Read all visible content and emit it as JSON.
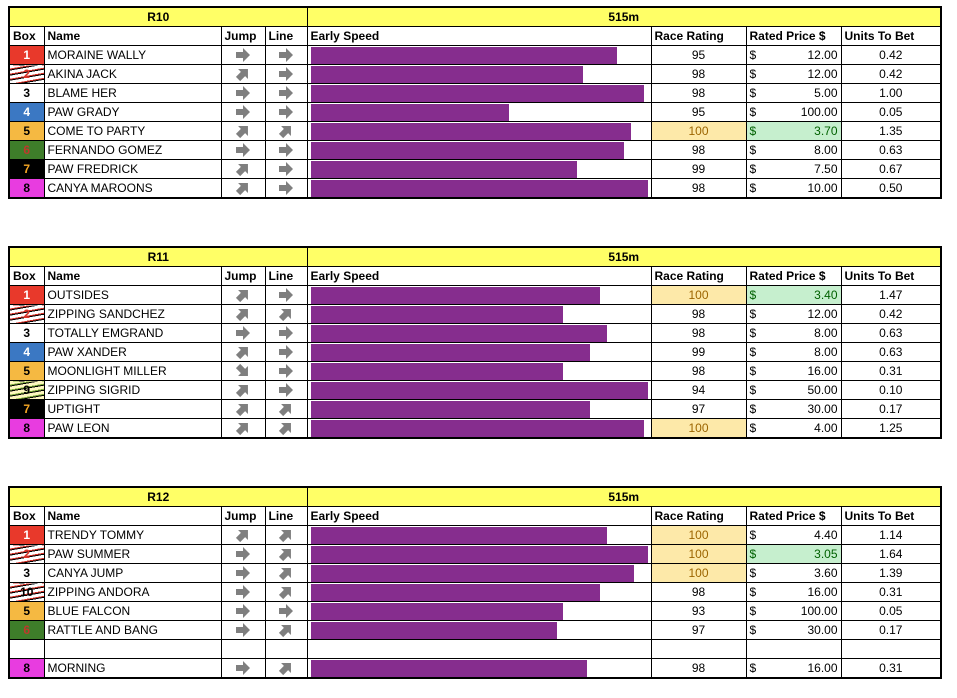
{
  "columns": [
    "Box",
    "Name",
    "Jump",
    "Line",
    "Early Speed",
    "Race Rating",
    "Rated Price $",
    "Units To Bet"
  ],
  "currency": "$",
  "early_speed_lim": [
    0,
    100
  ],
  "bar_color": "#862d8e",
  "header_color": "#ffff66",
  "races": [
    {
      "race": "R10",
      "distance": "515m",
      "rows": [
        {
          "box": "1",
          "box_color": "#e8392b",
          "box_text_color": "#ffffff",
          "name": "MORAINE WALLY",
          "jump": "right",
          "line": "right",
          "early_speed": 91,
          "race_rating": 95,
          "rated_price": "12.00",
          "units": "0.42"
        },
        {
          "box": "2",
          "box_color": "#ffffff",
          "box_text_color": "#d8332a",
          "box_pattern": "stripes",
          "box_stripe_color": "#d8332a",
          "name": "AKINA JACK",
          "jump": "up-right",
          "line": "right",
          "early_speed": 81,
          "race_rating": 98,
          "rated_price": "12.00",
          "units": "0.42"
        },
        {
          "box": "3",
          "box_color": "#ffffff",
          "box_text_color": "#000000",
          "name": "BLAME HER",
          "jump": "right",
          "line": "right",
          "early_speed": 99,
          "race_rating": 98,
          "rated_price": "5.00",
          "units": "1.00"
        },
        {
          "box": "4",
          "box_color": "#3b78c3",
          "box_text_color": "#ffffff",
          "name": "PAW GRADY",
          "jump": "right",
          "line": "right",
          "early_speed": 59,
          "race_rating": 95,
          "rated_price": "100.00",
          "units": "0.05"
        },
        {
          "box": "5",
          "box_color": "#f5b942",
          "box_text_color": "#000000",
          "name": "COME TO PARTY",
          "jump": "up-right",
          "line": "up-right",
          "early_speed": 95,
          "race_rating": 100,
          "rated_price": "3.70",
          "units": "1.35",
          "rating_highlight": true,
          "price_highlight": true
        },
        {
          "box": "6",
          "box_color": "#3e7d2a",
          "box_text_color": "#c0392b",
          "name": "FERNANDO GOMEZ",
          "jump": "right",
          "line": "right",
          "early_speed": 93,
          "race_rating": 98,
          "rated_price": "8.00",
          "units": "0.63"
        },
        {
          "box": "7",
          "box_color": "#000000",
          "box_text_color": "#f5a623",
          "name": "PAW FREDRICK",
          "jump": "up-right",
          "line": "right",
          "early_speed": 79,
          "race_rating": 99,
          "rated_price": "7.50",
          "units": "0.67"
        },
        {
          "box": "8",
          "box_color": "#e83ce0",
          "box_text_color": "#000000",
          "name": "CANYA MAROONS",
          "jump": "up-right",
          "line": "right",
          "early_speed": 100,
          "race_rating": 98,
          "rated_price": "10.00",
          "units": "0.50"
        }
      ]
    },
    {
      "race": "R11",
      "distance": "515m",
      "rows": [
        {
          "box": "1",
          "box_color": "#e8392b",
          "box_text_color": "#ffffff",
          "name": "OUTSIDES",
          "jump": "up-right",
          "line": "right",
          "early_speed": 86,
          "race_rating": 100,
          "rated_price": "3.40",
          "units": "1.47",
          "rating_highlight": true,
          "price_highlight": true
        },
        {
          "box": "2",
          "box_color": "#ffffff",
          "box_text_color": "#d8332a",
          "box_pattern": "stripes",
          "box_stripe_color": "#d8332a",
          "name": "ZIPPING SANDCHEZ",
          "jump": "up-right",
          "line": "up-right",
          "early_speed": 75,
          "race_rating": 98,
          "rated_price": "12.00",
          "units": "0.42"
        },
        {
          "box": "3",
          "box_color": "#ffffff",
          "box_text_color": "#000000",
          "name": "TOTALLY EMGRAND",
          "jump": "right",
          "line": "right",
          "early_speed": 88,
          "race_rating": 98,
          "rated_price": "8.00",
          "units": "0.63"
        },
        {
          "box": "4",
          "box_color": "#3b78c3",
          "box_text_color": "#ffffff",
          "name": "PAW XANDER",
          "jump": "up-right",
          "line": "right",
          "early_speed": 83,
          "race_rating": 99,
          "rated_price": "8.00",
          "units": "0.63"
        },
        {
          "box": "5",
          "box_color": "#f5b942",
          "box_text_color": "#000000",
          "name": "MOONLIGHT MILLER",
          "jump": "down-right",
          "line": "right",
          "early_speed": 75,
          "race_rating": 98,
          "rated_price": "16.00",
          "units": "0.31"
        },
        {
          "box": "9",
          "box_color": "#fff8c0",
          "box_text_color": "#000000",
          "box_pattern": "stripes",
          "box_stripe_color": "#7fae3a",
          "name": "ZIPPING SIGRID",
          "jump": "up-right",
          "line": "right",
          "early_speed": 100,
          "race_rating": 94,
          "rated_price": "50.00",
          "units": "0.10"
        },
        {
          "box": "7",
          "box_color": "#000000",
          "box_text_color": "#f5a623",
          "name": "UPTIGHT",
          "jump": "up-right",
          "line": "up-right",
          "early_speed": 83,
          "race_rating": 97,
          "rated_price": "30.00",
          "units": "0.17"
        },
        {
          "box": "8",
          "box_color": "#e83ce0",
          "box_text_color": "#000000",
          "name": "PAW LEON",
          "jump": "up-right",
          "line": "up-right",
          "early_speed": 99,
          "race_rating": 100,
          "rated_price": "4.00",
          "units": "1.25",
          "rating_highlight": true
        }
      ]
    },
    {
      "race": "R12",
      "distance": "515m",
      "rows": [
        {
          "box": "1",
          "box_color": "#e8392b",
          "box_text_color": "#ffffff",
          "name": "TRENDY TOMMY",
          "jump": "up-right",
          "line": "up-right",
          "early_speed": 88,
          "race_rating": 100,
          "rated_price": "4.40",
          "units": "1.14",
          "rating_highlight": true
        },
        {
          "box": "2",
          "box_color": "#ffffff",
          "box_text_color": "#d8332a",
          "box_pattern": "stripes",
          "box_stripe_color": "#d8332a",
          "name": "PAW SUMMER",
          "jump": "right",
          "line": "up-right",
          "early_speed": 100,
          "race_rating": 100,
          "rated_price": "3.05",
          "units": "1.64",
          "rating_highlight": true,
          "price_highlight": true
        },
        {
          "box": "3",
          "box_color": "#ffffff",
          "box_text_color": "#000000",
          "name": "CANYA JUMP",
          "jump": "right",
          "line": "up-right",
          "early_speed": 96,
          "race_rating": 100,
          "rated_price": "3.60",
          "units": "1.39",
          "rating_highlight": true
        },
        {
          "box": "10",
          "box_color": "#ffffff",
          "box_text_color": "#000000",
          "box_pattern": "stripes",
          "box_stripe_color": "#d8332a",
          "name": "ZIPPING ANDORA",
          "jump": "right",
          "line": "up-right",
          "early_speed": 86,
          "race_rating": 98,
          "rated_price": "16.00",
          "units": "0.31"
        },
        {
          "box": "5",
          "box_color": "#f5b942",
          "box_text_color": "#000000",
          "name": "BLUE FALCON",
          "jump": "right",
          "line": "right",
          "early_speed": 75,
          "race_rating": 93,
          "rated_price": "100.00",
          "units": "0.05"
        },
        {
          "box": "6",
          "box_color": "#3e7d2a",
          "box_text_color": "#c0392b",
          "name": "RATTLE AND BANG",
          "jump": "right",
          "line": "up-right",
          "early_speed": 73,
          "race_rating": 97,
          "rated_price": "30.00",
          "units": "0.17"
        },
        null,
        {
          "box": "8",
          "box_color": "#e83ce0",
          "box_text_color": "#000000",
          "name": "MORNING",
          "jump": "right",
          "line": "up-right",
          "early_speed": 82,
          "race_rating": 98,
          "rated_price": "16.00",
          "units": "0.31"
        }
      ]
    }
  ]
}
